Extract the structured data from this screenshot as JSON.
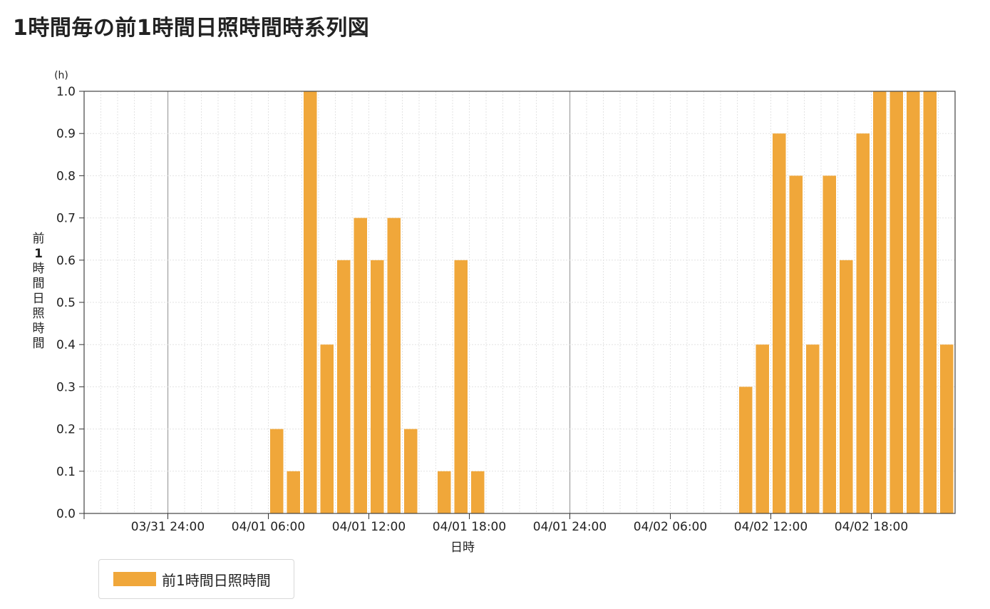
{
  "page_title": "1時間毎の前1時間日照時間時系列図",
  "chart_data": {
    "type": "bar",
    "title": "1時間毎の前1時間日照時間時系列図",
    "xlabel": "日時",
    "ylabel": "前1時間日照時間",
    "yunit": "(h)",
    "ylim": [
      0,
      1.0
    ],
    "yticks": [
      "0.0",
      "0.1",
      "0.2",
      "0.3",
      "0.4",
      "0.5",
      "0.6",
      "0.7",
      "0.8",
      "0.9",
      "1.0"
    ],
    "xtick_labels": [
      "03/31 24:00",
      "04/01 06:00",
      "04/01 12:00",
      "04/01 18:00",
      "04/01 24:00",
      "04/02 06:00",
      "04/02 12:00",
      "04/02 18:00"
    ],
    "x_start": "03/31 19:00",
    "bar_color": "#f0a73a",
    "grid": true,
    "legend": {
      "position": "bottom-left",
      "entries": [
        "前1時間日照時間"
      ]
    },
    "series": [
      {
        "name": "前1時間日照時間",
        "values": [
          0,
          0,
          0,
          0,
          0,
          0,
          0,
          0,
          0,
          0,
          0,
          0.2,
          0.1,
          1.0,
          0.4,
          0.6,
          0.7,
          0.6,
          0.7,
          0.2,
          0,
          0.1,
          0.6,
          0.1,
          0,
          0,
          0,
          0,
          0,
          0,
          0,
          0,
          0,
          0,
          0,
          0,
          0,
          0,
          0,
          0.3,
          0.4,
          0.9,
          0.8,
          0.4,
          0.8,
          0.6,
          0.9,
          1.0,
          1.0,
          1.0,
          1.0,
          0.4
        ]
      }
    ]
  }
}
